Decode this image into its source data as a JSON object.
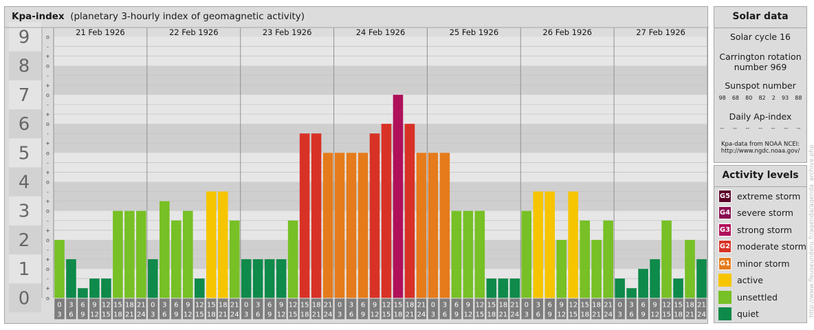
{
  "header": {
    "title": "Kpa-index",
    "subtitle": "(planetary 3-hourly index of geomagnetic activity)"
  },
  "chart_data": {
    "type": "bar",
    "title": "Kpa-index",
    "subtitle": "(planetary 3-hourly index of geomagnetic activity)",
    "ylim": [
      0,
      9
    ],
    "y_ticks": [
      "0",
      "1",
      "2",
      "3",
      "4",
      "5",
      "6",
      "7",
      "8",
      "9"
    ],
    "minor_ticks": [
      "+",
      "o",
      "-"
    ],
    "days": [
      "21 Feb 1926",
      "22 Feb 1926",
      "23 Feb 1926",
      "24 Feb 1926",
      "25 Feb 1926",
      "26 Feb 1926",
      "27 Feb 1926"
    ],
    "interval_labels": [
      [
        "0",
        "3"
      ],
      [
        "3",
        "6"
      ],
      [
        "6",
        "9"
      ],
      [
        "9",
        "12"
      ],
      [
        "12",
        "15"
      ],
      [
        "15",
        "18"
      ],
      [
        "18",
        "21"
      ],
      [
        "21",
        "24"
      ]
    ],
    "values": [
      [
        2.0,
        1.333,
        0.333,
        0.667,
        0.667,
        3.0,
        3.0,
        3.0
      ],
      [
        1.333,
        3.333,
        2.667,
        3.0,
        0.667,
        3.667,
        3.667,
        2.667
      ],
      [
        1.333,
        1.333,
        1.333,
        1.333,
        2.667,
        5.667,
        5.667,
        5.0
      ],
      [
        5.0,
        5.0,
        5.0,
        5.667,
        6.0,
        7.0,
        6.0,
        5.0
      ],
      [
        5.0,
        5.0,
        3.0,
        3.0,
        3.0,
        0.667,
        0.667,
        0.667
      ],
      [
        3.0,
        3.667,
        3.667,
        2.0,
        3.667,
        2.667,
        2.0,
        2.667
      ],
      [
        0.667,
        0.333,
        1.0,
        1.333,
        2.667,
        0.667,
        2.0,
        1.333
      ]
    ],
    "colors": {
      "quiet": "#0e8a4a",
      "unsettled": "#77c025",
      "active": "#f6c500",
      "G1": "#e57b1b",
      "G2": "#d83226",
      "G3": "#b0105a",
      "G4": "#8a0b4f",
      "G5": "#5a0027"
    }
  },
  "solar": {
    "title": "Solar data",
    "cycle": "Solar cycle 16",
    "carrington": [
      "Carrington rotation",
      "number 969"
    ],
    "sunspot_label": "Sunspot number",
    "sunspots": [
      "98",
      "68",
      "80",
      "82",
      "2",
      "93",
      "88"
    ],
    "ap_label": "Daily Ap-index",
    "ap": [
      "--",
      "--",
      "--",
      "--",
      "--",
      "--",
      "--"
    ],
    "source": [
      "Kpa-data from NOAA NCEI:",
      "http://www.ngdc.noaa.gov/"
    ]
  },
  "levels": {
    "title": "Activity levels",
    "items": [
      {
        "code": "G5",
        "label": "extreme storm",
        "color": "#5a0027"
      },
      {
        "code": "G4",
        "label": "severe storm",
        "color": "#8a0b4f"
      },
      {
        "code": "G3",
        "label": "strong storm",
        "color": "#b0105a"
      },
      {
        "code": "G2",
        "label": "moderate storm",
        "color": "#d83226"
      },
      {
        "code": "G1",
        "label": "minor storm",
        "color": "#e57b1b"
      },
      {
        "code": "",
        "label": "active",
        "color": "#f6c500"
      },
      {
        "code": "",
        "label": "unsettled",
        "color": "#77c025"
      },
      {
        "code": "",
        "label": "quiet",
        "color": "#0e8a4a"
      }
    ]
  },
  "credit": "http://www.fleuseunderu.fr/agenda/agenda_archive.php"
}
